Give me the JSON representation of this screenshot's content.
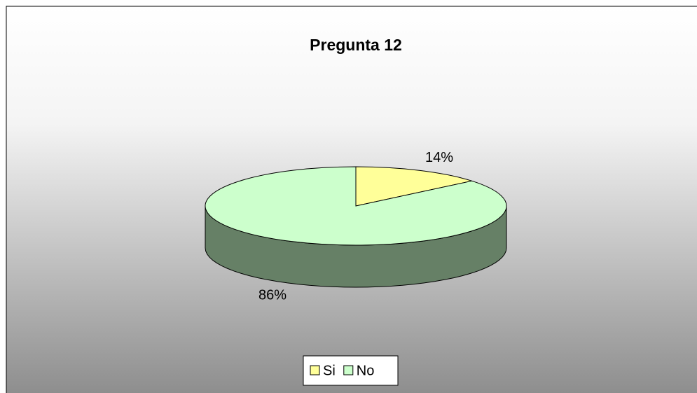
{
  "chart_data": {
    "type": "pie",
    "title": "Pregunta 12",
    "categories": [
      "Si",
      "No"
    ],
    "values": [
      14,
      86
    ],
    "value_labels": [
      "14%",
      "86%"
    ],
    "colors": [
      "#ffff99",
      "#ccffcc"
    ],
    "legend": "bottom"
  }
}
